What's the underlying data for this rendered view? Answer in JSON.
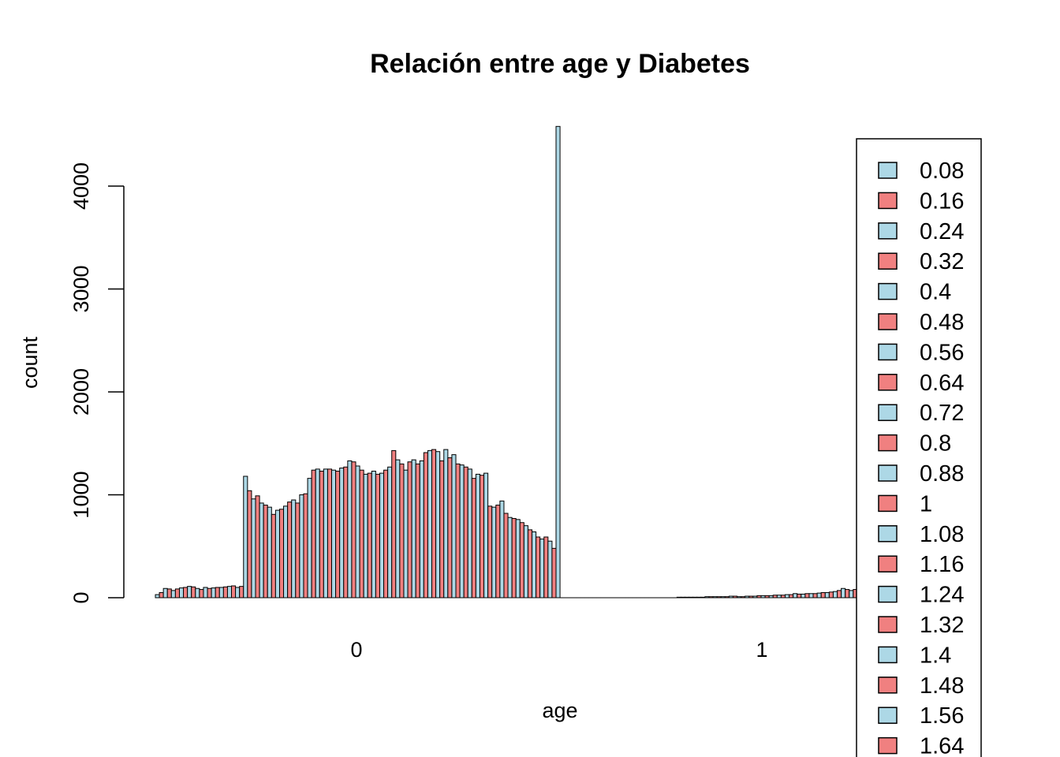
{
  "chart_data": {
    "type": "bar",
    "title": "Relación entre age y Diabetes",
    "xlabel": "age",
    "ylabel": "count",
    "ylim": [
      0,
      4600
    ],
    "y_ticks": [
      0,
      1000,
      2000,
      3000,
      4000
    ],
    "groups": [
      "0",
      "1"
    ],
    "colors": [
      "#ADD8E6",
      "#F08080"
    ],
    "grid": false,
    "legend_position": "right",
    "legend": [
      "0.08",
      "0.16",
      "0.24",
      "0.32",
      "0.4",
      "0.48",
      "0.56",
      "0.64",
      "0.72",
      "0.8",
      "0.88",
      "1",
      "1.08",
      "1.16",
      "1.24",
      "1.32",
      "1.4",
      "1.48",
      "1.56",
      "1.64"
    ],
    "series_values": {
      "0": [
        30,
        50,
        90,
        85,
        70,
        85,
        95,
        100,
        110,
        105,
        90,
        80,
        100,
        90,
        95,
        100,
        100,
        105,
        110,
        115,
        100,
        110,
        1180,
        1040,
        960,
        990,
        920,
        900,
        880,
        810,
        850,
        860,
        890,
        930,
        950,
        920,
        1000,
        1010,
        1160,
        1240,
        1250,
        1230,
        1250,
        1250,
        1240,
        1230,
        1260,
        1270,
        1330,
        1320,
        1280,
        1240,
        1200,
        1210,
        1230,
        1200,
        1210,
        1240,
        1270,
        1430,
        1340,
        1300,
        1240,
        1320,
        1340,
        1300,
        1330,
        1410,
        1430,
        1440,
        1420,
        1330,
        1440,
        1360,
        1390,
        1300,
        1290,
        1270,
        1250,
        1160,
        1200,
        1190,
        1210,
        890,
        880,
        900,
        940,
        820,
        780,
        770,
        760,
        730,
        700,
        660,
        640,
        590,
        570,
        590,
        550,
        480,
        4580
      ],
      "1": [
        0,
        0,
        0,
        0,
        0,
        0,
        0,
        0,
        0,
        0,
        0,
        0,
        0,
        0,
        0,
        0,
        0,
        0,
        0,
        0,
        0,
        0,
        0,
        0,
        0,
        0,
        0,
        0,
        0,
        5,
        5,
        5,
        5,
        5,
        5,
        5,
        10,
        10,
        10,
        10,
        10,
        10,
        15,
        15,
        10,
        10,
        15,
        15,
        15,
        20,
        20,
        20,
        20,
        25,
        25,
        25,
        30,
        30,
        40,
        35,
        35,
        40,
        40,
        40,
        45,
        50,
        50,
        55,
        60,
        70,
        90,
        80,
        70,
        80,
        90,
        100,
        110,
        100,
        120,
        140,
        120,
        130,
        150,
        170,
        175,
        170,
        160,
        150,
        140,
        130,
        120,
        110,
        100,
        90,
        80,
        70,
        60,
        50,
        40,
        30,
        20
      ]
    }
  }
}
